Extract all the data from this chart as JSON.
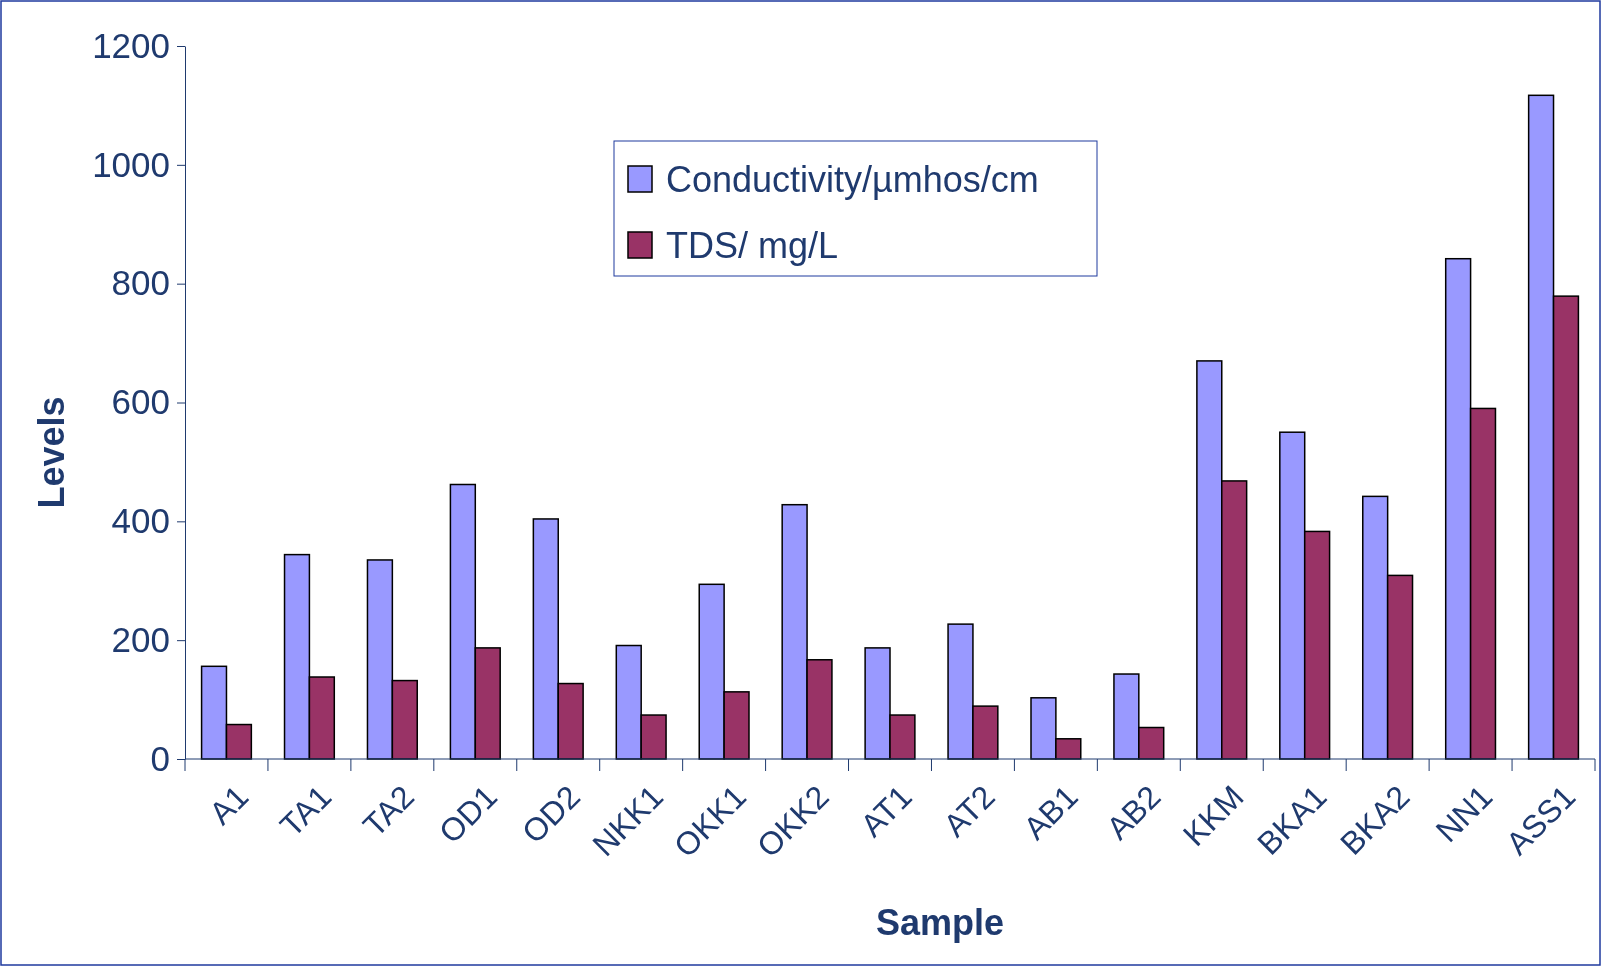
{
  "chart_data": {
    "type": "bar",
    "xlabel": "Sample",
    "ylabel": "Levels",
    "categories": [
      "A1",
      "TA1",
      "TA2",
      "OD1",
      "OD2",
      "NKK1",
      "OKK1",
      "OKK2",
      "AT1",
      "AT2",
      "AB1",
      "AB2",
      "KKM",
      "BKA1",
      "BKA2",
      "NN1",
      "ASS1"
    ],
    "series": [
      {
        "name": "Conductivity/µmhos/cm",
        "color": "#9999ff",
        "values": [
          156,
          344,
          335,
          462,
          404,
          191,
          294,
          428,
          187,
          227,
          103,
          143,
          670,
          550,
          442,
          842,
          1117
        ]
      },
      {
        "name": "TDS/ mg/L",
        "color": "#993366",
        "values": [
          58,
          138,
          132,
          187,
          127,
          74,
          113,
          167,
          74,
          89,
          34,
          53,
          468,
          383,
          309,
          590,
          779
        ]
      }
    ],
    "ylim": [
      0,
      1200
    ],
    "yticks": [
      0,
      200,
      400,
      600,
      800,
      1000,
      1200
    ],
    "grid": false,
    "legend": "top"
  }
}
